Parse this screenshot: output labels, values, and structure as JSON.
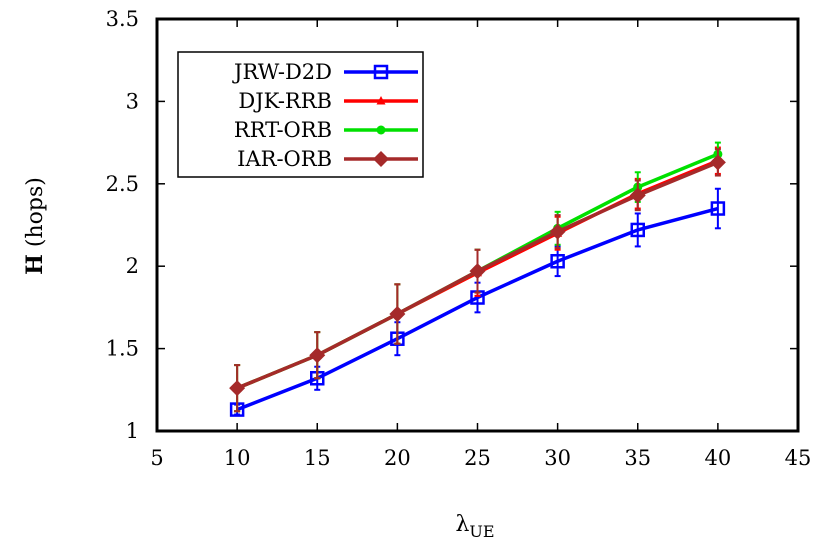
{
  "chart_data": {
    "type": "line",
    "xlim": [
      5,
      45
    ],
    "ylim": [
      1,
      3.5
    ],
    "x_ticks": [
      5,
      10,
      15,
      20,
      25,
      30,
      35,
      40,
      45
    ],
    "y_ticks": [
      1,
      1.5,
      2,
      2.5,
      3,
      3.5
    ],
    "y_tick_labels": [
      "1",
      "1.5",
      "2",
      "2.5",
      "3",
      "3.5"
    ],
    "xlabel_main": "λ",
    "xlabel_sub": "UE",
    "ylabel_bold": "H",
    "ylabel_rest": " (hops)",
    "legend_position": "top-left",
    "grid": false,
    "x": [
      10,
      15,
      20,
      25,
      30,
      35,
      40
    ],
    "series": [
      {
        "name": "JRW-D2D",
        "color": "#0000ff",
        "marker": "open-square",
        "values": [
          1.13,
          1.32,
          1.56,
          1.81,
          2.03,
          2.22,
          2.35
        ],
        "errors": [
          0.03,
          0.07,
          0.1,
          0.09,
          0.09,
          0.1,
          0.12
        ]
      },
      {
        "name": "DJK-RRB",
        "color": "#ff0000",
        "marker": "triangle",
        "values": [
          1.26,
          1.46,
          1.71,
          1.96,
          2.2,
          2.44,
          2.64
        ],
        "errors": [
          0.14,
          0.14,
          0.18,
          0.14,
          0.1,
          0.09,
          0.08
        ]
      },
      {
        "name": "RRT-ORB",
        "color": "#00e000",
        "marker": "circle",
        "values": [
          1.26,
          1.46,
          1.71,
          1.97,
          2.23,
          2.48,
          2.68
        ],
        "errors": [
          0.14,
          0.14,
          0.18,
          0.13,
          0.1,
          0.09,
          0.07
        ]
      },
      {
        "name": "IAR-ORB",
        "color": "#a52a2a",
        "marker": "diamond",
        "values": [
          1.26,
          1.46,
          1.71,
          1.97,
          2.21,
          2.43,
          2.63
        ],
        "errors": [
          0.14,
          0.14,
          0.18,
          0.13,
          0.1,
          0.09,
          0.08
        ]
      }
    ]
  }
}
